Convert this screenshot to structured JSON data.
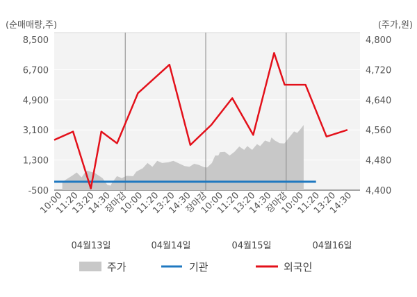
{
  "chart_data": {
    "type": "line",
    "title": "",
    "left_axis_label": "(순매매량,주)",
    "right_axis_label": "(주가,원)",
    "left_ylim": [
      -500,
      8500
    ],
    "left_ticks": [
      "8,500",
      "6,700",
      "4,900",
      "3,100",
      "1,300",
      "-500"
    ],
    "right_ylim": [
      4400,
      4800
    ],
    "right_ticks": [
      "4,800",
      "4,720",
      "4,640",
      "4,560",
      "4,480",
      "4,400"
    ],
    "x_labels": [
      "10:00",
      "11:20",
      "13:20",
      "14:30",
      "장마감",
      "10:00",
      "11:20",
      "13:20",
      "14:30",
      "장마감",
      "10:00",
      "11:20",
      "13:20",
      "14:30",
      "장마감",
      "10:00",
      "11:20",
      "13:20",
      "14:30"
    ],
    "closing_label": "장마감",
    "dates": [
      "04월13일",
      "04월14일",
      "04월15일",
      "04월16일"
    ],
    "series": [
      {
        "name": "주가",
        "axis": "right",
        "style": "area",
        "color": "#c8c8c8",
        "x": [
          0,
          0.3,
          0.6,
          0.9,
          1.2,
          1.5,
          2.0,
          2.5,
          2.8,
          3.0,
          3.1,
          3.4,
          3.7,
          4.0,
          4.4,
          4.6,
          4.9,
          5.0,
          5.3,
          5.6,
          5.9,
          6.2,
          6.6,
          6.9,
          7.3,
          7.6,
          7.9,
          8.2,
          8.5,
          8.8,
          9.0,
          9.3,
          9.5,
          9.7,
          9.8,
          10.1,
          10.4,
          10.7,
          11.0,
          11.3,
          11.5,
          11.8,
          12.1,
          12.3,
          12.6,
          12.9,
          13.0,
          13.2,
          13.5,
          13.8,
          14.1,
          14.4,
          14.6,
          14.8,
          15.0
        ],
        "y": [
          4422,
          4430,
          4438,
          4447,
          4434,
          4452,
          4446,
          4432,
          4414,
          4412,
          4420,
          4437,
          4432,
          4438,
          4437,
          4449,
          4456,
          4458,
          4472,
          4462,
          4478,
          4472,
          4474,
          4478,
          4470,
          4464,
          4462,
          4470,
          4467,
          4461,
          4460,
          4472,
          4492,
          4492,
          4501,
          4502,
          4492,
          4502,
          4516,
          4507,
          4517,
          4507,
          4522,
          4517,
          4532,
          4527,
          4540,
          4532,
          4525,
          4524,
          4540,
          4556,
          4552,
          4562,
          4573
        ]
      },
      {
        "name": "기관",
        "axis": "left",
        "style": "line",
        "color": "#1f78c0",
        "x": [
          0,
          25
        ],
        "y": [
          0,
          0
        ]
      },
      {
        "name": "외국인",
        "axis": "left",
        "style": "line",
        "color": "#e3101a",
        "x": [
          0,
          1.8,
          3.5,
          4.5,
          6,
          8,
          11,
          13,
          15,
          17,
          19,
          21,
          22,
          24,
          26,
          28
        ],
        "y": [
          2500,
          3000,
          -400,
          3000,
          2300,
          5300,
          7000,
          2200,
          3400,
          5000,
          2800,
          7700,
          5800,
          5800,
          2700,
          3100
        ]
      }
    ],
    "price_fill_color": "#c8c8c8",
    "legend": [
      "주가",
      "기관",
      "외국인"
    ],
    "legend_position": "bottom",
    "grid": true
  }
}
